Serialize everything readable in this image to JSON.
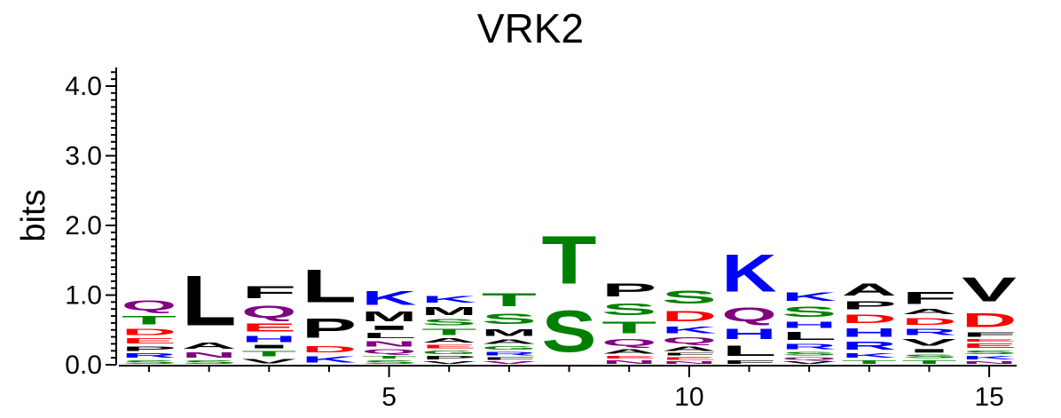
{
  "chart_data": {
    "type": "sequence-logo",
    "title": "VRK2",
    "ylabel": "bits",
    "ylim": [
      0,
      4.3
    ],
    "y_ticks": [
      "0.0",
      "1.0",
      "2.0",
      "3.0",
      "4.0"
    ],
    "y_tick_values": [
      0,
      1,
      2,
      3,
      4
    ],
    "x_ticks": [
      "5",
      "10",
      "15"
    ],
    "x_tick_values": [
      5,
      10,
      15
    ],
    "positions": [
      1,
      2,
      3,
      4,
      5,
      6,
      7,
      8,
      9,
      10,
      11,
      12,
      13,
      14,
      15
    ],
    "colors": {
      "green": "#008000",
      "red": "#ff0000",
      "blue": "#0000ff",
      "purple": "#800080",
      "black": "#000000"
    },
    "columns": [
      {
        "position": 1,
        "stack": [
          {
            "letter": "S",
            "height": 0.08,
            "color": "green"
          },
          {
            "letter": "R",
            "height": 0.1,
            "color": "blue"
          },
          {
            "letter": "P",
            "height": 0.1,
            "color": "black"
          },
          {
            "letter": "E",
            "height": 0.12,
            "color": "red"
          },
          {
            "letter": "D",
            "height": 0.14,
            "color": "red"
          },
          {
            "letter": "T",
            "height": 0.2,
            "color": "green"
          },
          {
            "letter": "Q",
            "height": 0.22,
            "color": "purple"
          }
        ]
      },
      {
        "position": 2,
        "stack": [
          {
            "letter": "S",
            "height": 0.08,
            "color": "green"
          },
          {
            "letter": "N",
            "height": 0.12,
            "color": "purple"
          },
          {
            "letter": "A",
            "height": 0.14,
            "color": "black"
          },
          {
            "letter": "L",
            "height": 1.15,
            "color": "black"
          }
        ]
      },
      {
        "position": 3,
        "stack": [
          {
            "letter": "V",
            "height": 0.1,
            "color": "black"
          },
          {
            "letter": "T",
            "height": 0.12,
            "color": "green"
          },
          {
            "letter": "I",
            "height": 0.08,
            "color": "black"
          },
          {
            "letter": "H",
            "height": 0.14,
            "color": "blue"
          },
          {
            "letter": "E",
            "height": 0.18,
            "color": "red"
          },
          {
            "letter": "Q",
            "height": 0.28,
            "color": "purple"
          },
          {
            "letter": "F",
            "height": 0.28,
            "color": "black"
          }
        ]
      },
      {
        "position": 4,
        "stack": [
          {
            "letter": "K",
            "height": 0.15,
            "color": "blue"
          },
          {
            "letter": "D",
            "height": 0.15,
            "color": "red"
          },
          {
            "letter": "P",
            "height": 0.45,
            "color": "black"
          },
          {
            "letter": "L",
            "height": 0.75,
            "color": "black"
          }
        ]
      },
      {
        "position": 5,
        "stack": [
          {
            "letter": "S",
            "height": 0.08,
            "color": "green"
          },
          {
            "letter": "T",
            "height": 0.06,
            "color": "green"
          },
          {
            "letter": "Q",
            "height": 0.1,
            "color": "purple"
          },
          {
            "letter": "N",
            "height": 0.12,
            "color": "purple"
          },
          {
            "letter": "L",
            "height": 0.12,
            "color": "black"
          },
          {
            "letter": "I",
            "height": 0.1,
            "color": "black"
          },
          {
            "letter": "M",
            "height": 0.22,
            "color": "black"
          },
          {
            "letter": "K",
            "height": 0.32,
            "color": "blue"
          }
        ]
      },
      {
        "position": 6,
        "stack": [
          {
            "letter": "V",
            "height": 0.06,
            "color": "black"
          },
          {
            "letter": "P",
            "height": 0.08,
            "color": "black"
          },
          {
            "letter": "G",
            "height": 0.08,
            "color": "green"
          },
          {
            "letter": "E",
            "height": 0.08,
            "color": "red"
          },
          {
            "letter": "A",
            "height": 0.1,
            "color": "black"
          },
          {
            "letter": "T",
            "height": 0.14,
            "color": "green"
          },
          {
            "letter": "S",
            "height": 0.14,
            "color": "green"
          },
          {
            "letter": "M",
            "height": 0.18,
            "color": "black"
          },
          {
            "letter": "K",
            "height": 0.16,
            "color": "blue"
          }
        ]
      },
      {
        "position": 7,
        "stack": [
          {
            "letter": "V",
            "height": 0.06,
            "color": "purple"
          },
          {
            "letter": "F",
            "height": 0.06,
            "color": "black"
          },
          {
            "letter": "R",
            "height": 0.08,
            "color": "blue"
          },
          {
            "letter": "G",
            "height": 0.08,
            "color": "green"
          },
          {
            "letter": "A",
            "height": 0.1,
            "color": "black"
          },
          {
            "letter": "M",
            "height": 0.16,
            "color": "black"
          },
          {
            "letter": "S",
            "height": 0.24,
            "color": "green"
          },
          {
            "letter": "T",
            "height": 0.3,
            "color": "green"
          }
        ]
      },
      {
        "position": 8,
        "stack": [
          {
            "letter": "S",
            "height": 0.95,
            "color": "green"
          },
          {
            "letter": "T",
            "height": 1.1,
            "color": "green"
          }
        ]
      },
      {
        "position": 9,
        "stack": [
          {
            "letter": "N",
            "height": 0.08,
            "color": "purple"
          },
          {
            "letter": "E",
            "height": 0.06,
            "color": "red"
          },
          {
            "letter": "A",
            "height": 0.1,
            "color": "black"
          },
          {
            "letter": "Q",
            "height": 0.16,
            "color": "purple"
          },
          {
            "letter": "T",
            "height": 0.26,
            "color": "green"
          },
          {
            "letter": "S",
            "height": 0.26,
            "color": "green"
          },
          {
            "letter": "P",
            "height": 0.3,
            "color": "black"
          }
        ]
      },
      {
        "position": 10,
        "stack": [
          {
            "letter": "N",
            "height": 0.06,
            "color": "purple"
          },
          {
            "letter": "E",
            "height": 0.06,
            "color": "red"
          },
          {
            "letter": "F",
            "height": 0.06,
            "color": "black"
          },
          {
            "letter": "A",
            "height": 0.1,
            "color": "black"
          },
          {
            "letter": "Q",
            "height": 0.14,
            "color": "purple"
          },
          {
            "letter": "K",
            "height": 0.16,
            "color": "blue"
          },
          {
            "letter": "D",
            "height": 0.24,
            "color": "red"
          },
          {
            "letter": "S",
            "height": 0.3,
            "color": "green"
          }
        ]
      },
      {
        "position": 11,
        "stack": [
          {
            "letter": "F",
            "height": 0.08,
            "color": "black"
          },
          {
            "letter": "L",
            "height": 0.24,
            "color": "black"
          },
          {
            "letter": "H",
            "height": 0.24,
            "color": "blue"
          },
          {
            "letter": "Q",
            "height": 0.32,
            "color": "purple"
          },
          {
            "letter": "K",
            "height": 0.86,
            "color": "blue"
          }
        ]
      },
      {
        "position": 12,
        "stack": [
          {
            "letter": "V",
            "height": 0.06,
            "color": "black"
          },
          {
            "letter": "Q",
            "height": 0.06,
            "color": "purple"
          },
          {
            "letter": "S",
            "height": 0.08,
            "color": "green"
          },
          {
            "letter": "R",
            "height": 0.12,
            "color": "blue"
          },
          {
            "letter": "L",
            "height": 0.18,
            "color": "black"
          },
          {
            "letter": "H",
            "height": 0.14,
            "color": "blue"
          },
          {
            "letter": "S",
            "height": 0.24,
            "color": "green"
          },
          {
            "letter": "K",
            "height": 0.2,
            "color": "blue"
          }
        ]
      },
      {
        "position": 13,
        "stack": [
          {
            "letter": "T",
            "height": 0.08,
            "color": "green"
          },
          {
            "letter": "K",
            "height": 0.1,
            "color": "blue"
          },
          {
            "letter": "R",
            "height": 0.18,
            "color": "blue"
          },
          {
            "letter": "H",
            "height": 0.2,
            "color": "blue"
          },
          {
            "letter": "D",
            "height": 0.2,
            "color": "red"
          },
          {
            "letter": "P",
            "height": 0.18,
            "color": "black"
          },
          {
            "letter": "A",
            "height": 0.28,
            "color": "black"
          }
        ]
      },
      {
        "position": 14,
        "stack": [
          {
            "letter": "T",
            "height": 0.08,
            "color": "green"
          },
          {
            "letter": "S",
            "height": 0.08,
            "color": "green"
          },
          {
            "letter": "I",
            "height": 0.08,
            "color": "black"
          },
          {
            "letter": "V",
            "height": 0.16,
            "color": "black"
          },
          {
            "letter": "R",
            "height": 0.14,
            "color": "blue"
          },
          {
            "letter": "D",
            "height": 0.16,
            "color": "red"
          },
          {
            "letter": "A",
            "height": 0.12,
            "color": "black"
          },
          {
            "letter": "F",
            "height": 0.28,
            "color": "black"
          }
        ]
      },
      {
        "position": 15,
        "stack": [
          {
            "letter": "N",
            "height": 0.06,
            "color": "purple"
          },
          {
            "letter": "K",
            "height": 0.08,
            "color": "blue"
          },
          {
            "letter": "S",
            "height": 0.08,
            "color": "green"
          },
          {
            "letter": "E",
            "height": 0.1,
            "color": "red"
          },
          {
            "letter": "E",
            "height": 0.06,
            "color": "red"
          },
          {
            "letter": "F",
            "height": 0.1,
            "color": "black"
          },
          {
            "letter": "D",
            "height": 0.32,
            "color": "red"
          },
          {
            "letter": "V",
            "height": 0.55,
            "color": "black"
          }
        ]
      }
    ]
  }
}
